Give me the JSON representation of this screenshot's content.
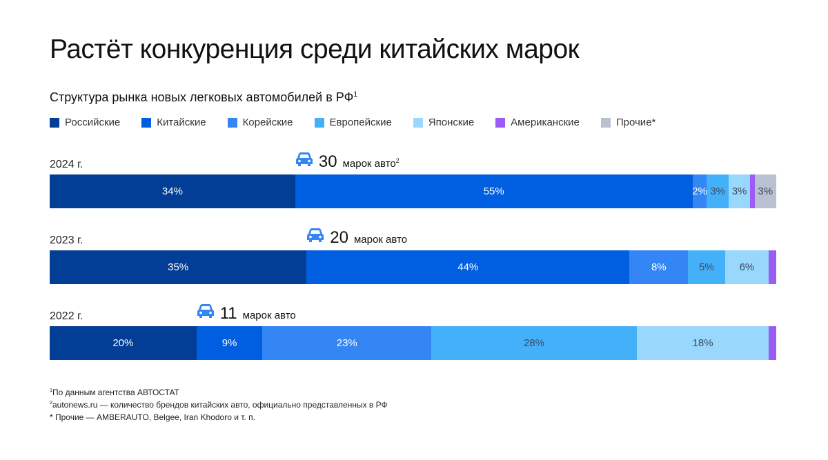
{
  "title": "Растёт конкуренция среди китайских марок",
  "subtitle": "Структура рынка новых легковых автомобилей в РФ",
  "subtitle_sup": "1",
  "chart_data": {
    "type": "bar",
    "orientation": "horizontal-stacked-100",
    "legend_position": "top",
    "legend": [
      "Российские",
      "Китайские",
      "Корейские",
      "Европейские",
      "Японские",
      "Американские",
      "Прочие*"
    ],
    "colors": [
      "#023d96",
      "#005ee0",
      "#3486f5",
      "#45b0fa",
      "#99d7fc",
      "#9b5cf6",
      "#b9c0d0"
    ],
    "rows": [
      {
        "year": "2024 г.",
        "brands": "30",
        "brands_label": "марок авто",
        "brands_sup": "2",
        "values": [
          34,
          55,
          2,
          3,
          3,
          0.6,
          3
        ],
        "labels": [
          "34%",
          "55%",
          "2%",
          "3%",
          "3%",
          "",
          "3%"
        ]
      },
      {
        "year": "2023 г.",
        "brands": "20",
        "brands_label": "марок авто",
        "brands_sup": "",
        "values": [
          35,
          44,
          8,
          5,
          6,
          1,
          0
        ],
        "labels": [
          "35%",
          "44%",
          "8%",
          "5%",
          "6%",
          "",
          ""
        ]
      },
      {
        "year": "2022 г.",
        "brands": "11",
        "brands_label": "марок авто",
        "brands_sup": "",
        "values": [
          20,
          9,
          23,
          28,
          18,
          1,
          0
        ],
        "labels": [
          "20%",
          "9%",
          "23%",
          "28%",
          "18%",
          "",
          ""
        ]
      }
    ]
  },
  "notes": [
    {
      "sup": "1",
      "text": "По данным агентства АВТОСТАТ"
    },
    {
      "sup": "2",
      "text": "autonews.ru — количество брендов китайских авто, официально представленных в РФ"
    },
    {
      "sup": "",
      "text": "* Прочие — AMBERAUTO, Belgee, Iran Khodoro и т. п."
    }
  ],
  "icon": "car-icon"
}
